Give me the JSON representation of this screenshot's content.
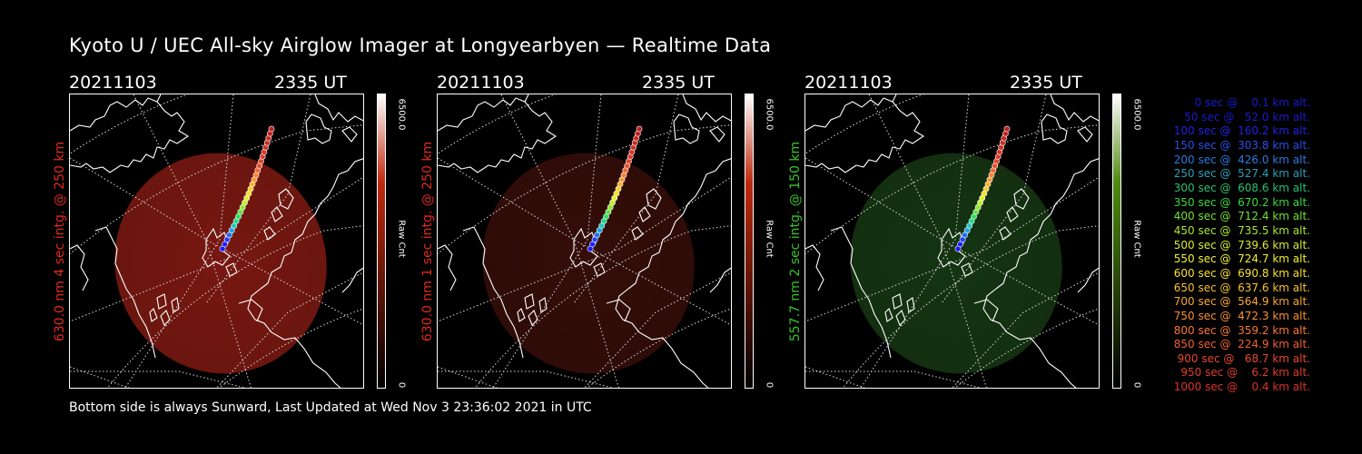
{
  "title": "Kyoto U / UEC All-sky Airglow Imager at Longyearbyen — Realtime Data",
  "panels": [
    {
      "date": "20211103",
      "time": "2335 UT",
      "side_label": "630.0 nm  4 sec intg. @ 250 km",
      "label_color": "#e02a1e",
      "colorbar_top": "#ffffff",
      "colorbar_mid": "#c0290e",
      "colorbar_bottom": "#000000",
      "blob_color": "#8c1c14",
      "blob_opacity": 0.85,
      "cb_max": "6500.0",
      "cb_label": "Raw Cnt",
      "cb_min": "0"
    },
    {
      "date": "20211103",
      "time": "2335 UT",
      "side_label": "630.0 nm  1 sec intg. @ 250 km",
      "label_color": "#e02a1e",
      "colorbar_top": "#ffffff",
      "colorbar_mid": "#c0290e",
      "colorbar_bottom": "#000000",
      "blob_color": "#3a0f0a",
      "blob_opacity": 0.9,
      "cb_max": "6500.0",
      "cb_label": "Raw Cnt",
      "cb_min": "0"
    },
    {
      "date": "20211103",
      "time": "2335 UT",
      "side_label": "557.7 nm  2 sec intg. @ 150 km",
      "label_color": "#35c42a",
      "colorbar_top": "#ffffff",
      "colorbar_mid": "#4f8a10",
      "colorbar_bottom": "#000000",
      "blob_color": "#173a14",
      "blob_opacity": 0.9,
      "cb_max": "6500.0",
      "cb_label": "Raw Cnt",
      "cb_min": "0"
    }
  ],
  "footer": "Bottom side is always Sunward, Last Updated at Wed Nov  3 23:36:02 2021 in UTC",
  "legend": [
    {
      "text": "   0 sec @    0.1 km alt.",
      "color": "#1a1acc"
    },
    {
      "text": "  50 sec @   52.0 km alt.",
      "color": "#1a1acc"
    },
    {
      "text": " 100 sec @  160.2 km alt.",
      "color": "#2222e0"
    },
    {
      "text": " 150 sec @  303.8 km alt.",
      "color": "#2a4ee8"
    },
    {
      "text": " 200 sec @  426.0 km alt.",
      "color": "#2a7ae0"
    },
    {
      "text": " 250 sec @  527.4 km alt.",
      "color": "#2aa0b8"
    },
    {
      "text": " 300 sec @  608.6 km alt.",
      "color": "#2ac070"
    },
    {
      "text": " 350 sec @  670.2 km alt.",
      "color": "#3cd83c"
    },
    {
      "text": " 400 sec @  712.4 km alt.",
      "color": "#74e034"
    },
    {
      "text": " 450 sec @  735.5 km alt.",
      "color": "#a8e830"
    },
    {
      "text": " 500 sec @  739.6 km alt.",
      "color": "#d8ec30"
    },
    {
      "text": " 550 sec @  724.7 km alt.",
      "color": "#f0f030"
    },
    {
      "text": " 600 sec @  690.8 km alt.",
      "color": "#f8e030"
    },
    {
      "text": " 650 sec @  637.6 km alt.",
      "color": "#f8c030"
    },
    {
      "text": " 700 sec @  564.9 km alt.",
      "color": "#f8a830"
    },
    {
      "text": " 750 sec @  472.3 km alt.",
      "color": "#f89030"
    },
    {
      "text": " 800 sec @  359.2 km alt.",
      "color": "#f87830"
    },
    {
      "text": " 850 sec @  224.9 km alt.",
      "color": "#f06030"
    },
    {
      "text": " 900 sec @   68.7 km alt.",
      "color": "#e84830"
    },
    {
      "text": " 950 sec @    6.2 km alt.",
      "color": "#e03c2c"
    },
    {
      "text": "1000 sec @    0.4 km alt.",
      "color": "#d83428"
    }
  ]
}
